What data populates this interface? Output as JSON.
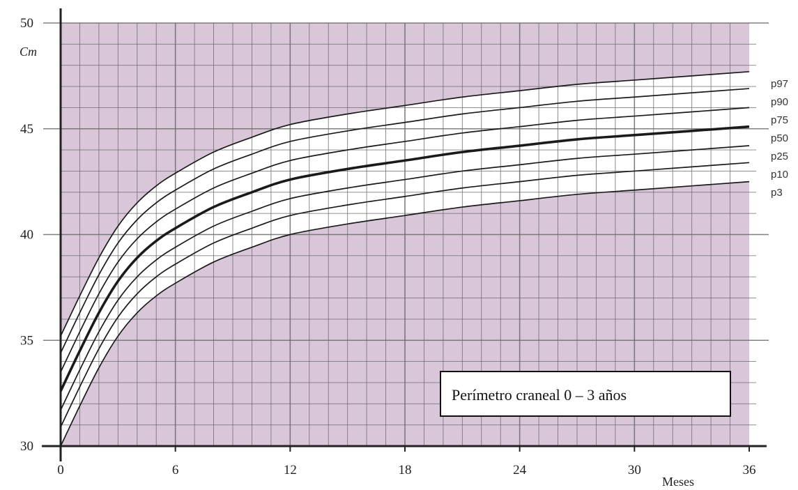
{
  "chart_data": {
    "type": "line",
    "title": "Perímetro craneal  0 – 3 años",
    "xlabel": "Meses",
    "ylabel": "Cm",
    "xlim": [
      0,
      36
    ],
    "ylim": [
      30,
      50
    ],
    "xticks": [
      0,
      6,
      12,
      18,
      24,
      30,
      36
    ],
    "yticks": [
      30,
      35,
      40,
      45,
      50
    ],
    "grid": true,
    "x": [
      0,
      1,
      2,
      3,
      4,
      5,
      6,
      8,
      10,
      12,
      15,
      18,
      21,
      24,
      27,
      30,
      33,
      36
    ],
    "series": [
      {
        "name": "p97",
        "values": [
          35.2,
          37.1,
          38.9,
          40.4,
          41.5,
          42.3,
          42.9,
          43.9,
          44.6,
          45.2,
          45.7,
          46.1,
          46.5,
          46.8,
          47.1,
          47.3,
          47.5,
          47.7
        ]
      },
      {
        "name": "p90",
        "values": [
          34.4,
          36.3,
          38.1,
          39.6,
          40.7,
          41.5,
          42.1,
          43.1,
          43.8,
          44.4,
          44.9,
          45.3,
          45.7,
          46.0,
          46.3,
          46.5,
          46.7,
          46.9
        ]
      },
      {
        "name": "p75",
        "values": [
          33.5,
          35.4,
          37.2,
          38.7,
          39.8,
          40.6,
          41.2,
          42.2,
          42.9,
          43.5,
          44.0,
          44.4,
          44.8,
          45.1,
          45.4,
          45.6,
          45.8,
          46.0
        ]
      },
      {
        "name": "p50",
        "values": [
          32.6,
          34.5,
          36.3,
          37.8,
          38.9,
          39.7,
          40.3,
          41.3,
          42.0,
          42.6,
          43.1,
          43.5,
          43.9,
          44.2,
          44.5,
          44.7,
          44.9,
          45.1
        ]
      },
      {
        "name": "p25",
        "values": [
          31.7,
          33.6,
          35.4,
          36.9,
          38.0,
          38.8,
          39.4,
          40.4,
          41.1,
          41.7,
          42.2,
          42.6,
          43.0,
          43.3,
          43.6,
          43.8,
          44.0,
          44.2
        ]
      },
      {
        "name": "p10",
        "values": [
          30.9,
          32.8,
          34.6,
          36.1,
          37.2,
          38.0,
          38.6,
          39.6,
          40.3,
          40.9,
          41.4,
          41.8,
          42.2,
          42.5,
          42.8,
          43.0,
          43.2,
          43.4
        ]
      },
      {
        "name": "p3",
        "values": [
          30.0,
          31.9,
          33.7,
          35.2,
          36.3,
          37.1,
          37.7,
          38.7,
          39.4,
          40.0,
          40.5,
          40.9,
          41.3,
          41.6,
          41.9,
          42.1,
          42.3,
          42.5
        ]
      }
    ],
    "colors": {
      "background": "#d9c7d9",
      "band": "#ffffff",
      "grid": "#6b6b6b",
      "line": "#1a1a1a",
      "box_border": "#111111"
    }
  }
}
